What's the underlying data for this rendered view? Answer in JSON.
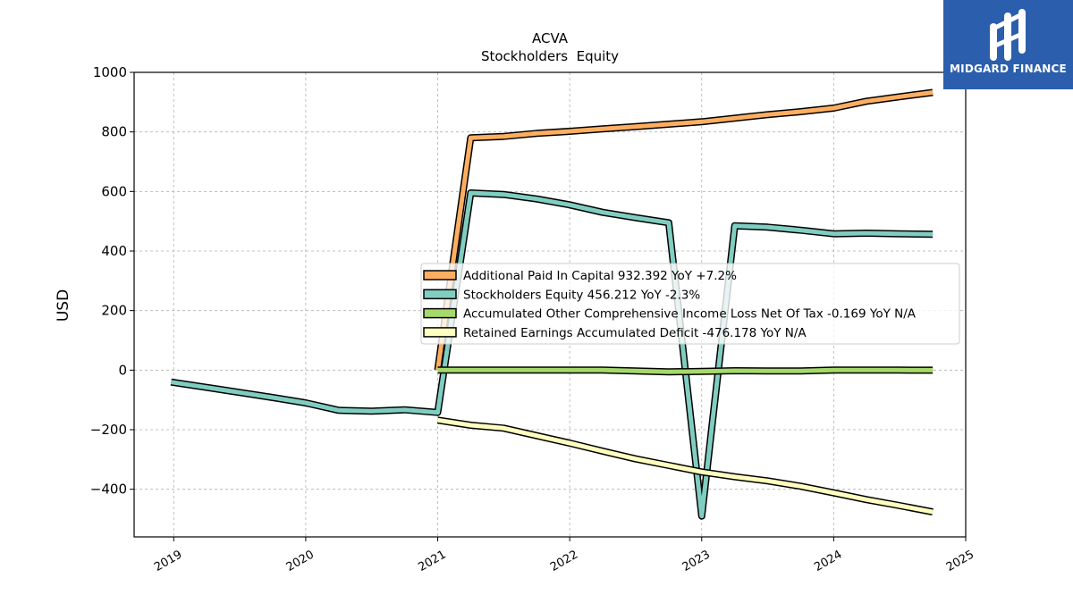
{
  "chart_data": {
    "type": "line",
    "title": "ACVA",
    "subtitle": "Stockholders  Equity",
    "ylabel": "USD",
    "xlabel": "",
    "xlim": [
      2018.7,
      2025.0
    ],
    "ylim": [
      -560,
      1000
    ],
    "yticks": [
      -400,
      -200,
      0,
      200,
      400,
      600,
      800,
      1000
    ],
    "ytick_labels": [
      "−400",
      "−200",
      "0",
      "200",
      "400",
      "600",
      "800",
      "1000"
    ],
    "xticks": [
      2019,
      2020,
      2021,
      2022,
      2023,
      2024,
      2025
    ],
    "xtick_labels": [
      "2019",
      "2020",
      "2021",
      "2022",
      "2023",
      "2024",
      "2025"
    ],
    "grid": true,
    "legend_position": "center-right",
    "series": [
      {
        "name": "Additional Paid In Capital",
        "legend_label": "Additional Paid In Capital  932.392 YoY +7.2%",
        "color": "#fdae61",
        "x": [
          2021.0,
          2021.25,
          2021.5,
          2021.75,
          2022.0,
          2022.25,
          2022.5,
          2022.75,
          2023.0,
          2023.25,
          2023.5,
          2023.75,
          2024.0,
          2024.25,
          2024.5,
          2024.75
        ],
        "values": [
          0,
          780,
          785,
          795,
          802,
          810,
          818,
          826,
          834,
          846,
          858,
          868,
          880,
          903,
          918,
          932.392
        ]
      },
      {
        "name": "Stockholders Equity",
        "legend_label": "Stockholders Equity  456.212 YoY -2.3%",
        "color": "#80cdc1",
        "x": [
          2018.98,
          2019.25,
          2019.5,
          2019.75,
          2020.0,
          2020.25,
          2020.5,
          2020.75,
          2021.0,
          2021.25,
          2021.5,
          2021.75,
          2022.0,
          2022.25,
          2022.5,
          2022.75,
          2023.0,
          2023.25,
          2023.5,
          2023.75,
          2024.0,
          2024.25,
          2024.5,
          2024.75
        ],
        "values": [
          -40,
          -58,
          -75,
          -92,
          -110,
          -135,
          -138,
          -133,
          -142,
          595,
          590,
          575,
          555,
          530,
          512,
          495,
          -490,
          485,
          480,
          470,
          458,
          460,
          458,
          456.212
        ]
      },
      {
        "name": "Accumulated Other Comprehensive Income Loss Net Of Tax",
        "legend_label": "Accumulated Other Comprehensive Income Loss Net Of Tax  -0.169 YoY N/A",
        "color": "#a6d96a",
        "x": [
          2021.0,
          2021.25,
          2021.5,
          2021.75,
          2022.0,
          2022.25,
          2022.5,
          2022.75,
          2023.0,
          2023.25,
          2023.5,
          2023.75,
          2024.0,
          2024.25,
          2024.5,
          2024.75
        ],
        "values": [
          0,
          0,
          0,
          0,
          0,
          0,
          -3,
          -6,
          -4,
          -2,
          -3,
          -3,
          0,
          0,
          0,
          -0.169
        ]
      },
      {
        "name": "Retained Earnings Accumulated Deficit",
        "legend_label": "Retained Earnings Accumulated Deficit  -476.178 YoY N/A",
        "color": "#ffffbf",
        "x": [
          2021.0,
          2021.25,
          2021.5,
          2021.75,
          2022.0,
          2022.25,
          2022.5,
          2022.75,
          2023.0,
          2023.25,
          2023.5,
          2023.75,
          2024.0,
          2024.25,
          2024.5,
          2024.75
        ],
        "values": [
          -168,
          -185,
          -195,
          -220,
          -245,
          -272,
          -298,
          -320,
          -342,
          -358,
          -372,
          -390,
          -412,
          -435,
          -455,
          -476.178
        ]
      }
    ]
  },
  "logo": {
    "text": "MIDGARD FINANCE",
    "icon": "midgard-finance-logo-icon",
    "background": "#2b5fad"
  }
}
